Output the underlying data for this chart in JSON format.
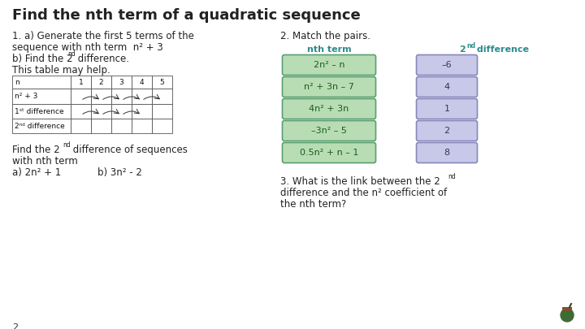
{
  "title": "Find the nth term of a quadratic sequence",
  "bg_color": "#ffffff",
  "title_color": "#222222",
  "teal_color": "#2e8b8b",
  "green_box_color": "#b8ddb4",
  "green_box_border": "#5a9e6f",
  "purple_box_color": "#c8c8e8",
  "purple_box_border": "#8888bb",
  "green_terms": [
    "2n² – n",
    "n² + 3n – 7",
    "4n² + 3n",
    "–3n² – 5",
    "0.5n² + n – 1"
  ],
  "purple_values": [
    "–6",
    "4",
    "1",
    "2",
    "8"
  ],
  "page_num": "2"
}
